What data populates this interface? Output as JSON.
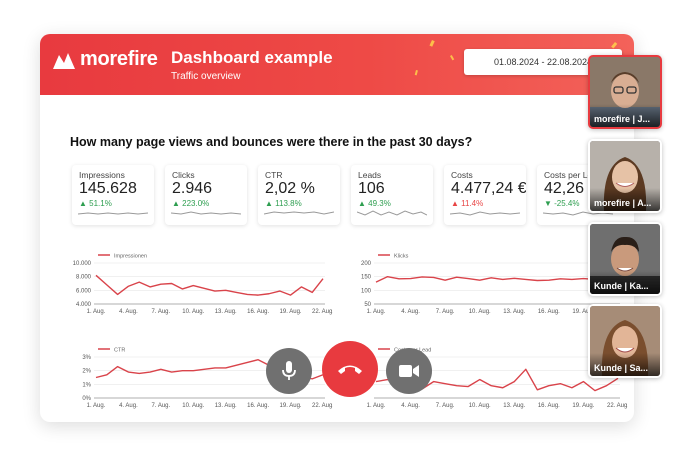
{
  "header": {
    "brand": "morefire",
    "title": "Dashboard example",
    "subtitle": "Traffic overview",
    "date_range": "01.08.2024 - 22.08.2024"
  },
  "question": "How many page views and bounces were there in the past 30 days?",
  "kpis": [
    {
      "label": "Impressions",
      "value": "145.628",
      "delta": "▲ 51.1%",
      "trend": "up"
    },
    {
      "label": "Clicks",
      "value": "2.946",
      "delta": "▲ 223.0%",
      "trend": "up"
    },
    {
      "label": "CTR",
      "value": "2,02 %",
      "delta": "▲ 113.8%",
      "trend": "up"
    },
    {
      "label": "Leads",
      "value": "106",
      "delta": "▲ 49.3%",
      "trend": "up"
    },
    {
      "label": "Costs",
      "value": "4.477,24 €",
      "delta": "▲ 11.4%",
      "trend": "down"
    },
    {
      "label": "Costs per Le",
      "value": "42,26",
      "delta": "▼ -25.4%",
      "trend": "up"
    }
  ],
  "colors": {
    "brand": "#e83a3f",
    "line": "#d9434a",
    "positive": "#2e9e50",
    "negative": "#e84545",
    "hangup": "#e83a3f",
    "control": "#6e6e6e"
  },
  "call_controls": [
    {
      "name": "microphone-button",
      "icon": "microphone-icon"
    },
    {
      "name": "hang-up-button",
      "icon": "phone-hangup-icon"
    },
    {
      "name": "camera-button",
      "icon": "video-camera-icon"
    }
  ],
  "participants": [
    {
      "name": "morefire | J...",
      "active": true
    },
    {
      "name": "morefire | A...",
      "active": false
    },
    {
      "name": "Kunde | Ka...",
      "active": false
    },
    {
      "name": "Kunde | Sa...",
      "active": false
    }
  ],
  "chart_data": [
    {
      "type": "line",
      "legend": "Impressionen",
      "x_ticks": [
        "1. Aug.",
        "4. Aug.",
        "7. Aug.",
        "10. Aug.",
        "13. Aug.",
        "16. Aug.",
        "19. Aug.",
        "22. Aug."
      ],
      "y_ticks": [
        "10.000",
        "8.000",
        "6.000",
        "4.000"
      ],
      "ylim": [
        4000,
        10000
      ],
      "x": [
        1,
        2,
        3,
        4,
        5,
        6,
        7,
        8,
        9,
        10,
        11,
        12,
        13,
        14,
        15,
        16,
        17,
        18,
        19,
        20,
        21,
        22
      ],
      "values": [
        8200,
        6800,
        5400,
        6600,
        7200,
        6500,
        6900,
        7000,
        6200,
        6700,
        6300,
        5900,
        6000,
        5700,
        5400,
        5300,
        5500,
        5900,
        5300,
        6500,
        5700,
        7700
      ]
    },
    {
      "type": "line",
      "legend": "Klicks",
      "x_ticks": [
        "1. Aug.",
        "4. Aug.",
        "7. Aug.",
        "10. Aug.",
        "13. Aug.",
        "16. Aug.",
        "19. Aug.",
        "22. Aug."
      ],
      "y_ticks": [
        "200",
        "150",
        "100",
        "50"
      ],
      "ylim": [
        50,
        200
      ],
      "x": [
        1,
        2,
        3,
        4,
        5,
        6,
        7,
        8,
        9,
        10,
        11,
        12,
        13,
        14,
        15,
        16,
        17,
        18,
        19,
        20,
        21,
        22
      ],
      "values": [
        130,
        150,
        142,
        143,
        149,
        147,
        137,
        148,
        143,
        137,
        146,
        140,
        144,
        140,
        136,
        137,
        142,
        140,
        143,
        140,
        138,
        146
      ]
    },
    {
      "type": "line",
      "legend": "CTR",
      "x_ticks": [
        "1. Aug.",
        "4. Aug.",
        "7. Aug.",
        "10. Aug.",
        "13. Aug.",
        "16. Aug.",
        "19. Aug.",
        "22. Aug."
      ],
      "y_ticks": [
        "3%",
        "2%",
        "1%",
        "0%"
      ],
      "ylim": [
        0,
        3
      ],
      "x": [
        1,
        2,
        3,
        4,
        5,
        6,
        7,
        8,
        9,
        10,
        11,
        12,
        13,
        14,
        15,
        16,
        17,
        18,
        19,
        20,
        21,
        22
      ],
      "values": [
        1.5,
        1.7,
        2.3,
        1.9,
        1.8,
        1.9,
        2.1,
        1.9,
        2.0,
        2.0,
        2.1,
        2.2,
        2.2,
        2.4,
        2.6,
        2.8,
        2.4,
        2.1,
        2.0,
        1.6,
        1.4,
        1.7
      ]
    },
    {
      "type": "line",
      "legend": "Costs per Lead",
      "x_ticks": [
        "1. Aug.",
        "4. Aug.",
        "7. Aug.",
        "10. Aug.",
        "13. Aug.",
        "16. Aug.",
        "19. Aug.",
        "22. Aug."
      ],
      "y_ticks": [
        "",
        "",
        "",
        ""
      ],
      "ylim": [
        0,
        100
      ],
      "x": [
        1,
        2,
        3,
        4,
        5,
        6,
        7,
        8,
        9,
        10,
        11,
        12,
        13,
        14,
        15,
        16,
        17,
        18,
        19,
        20,
        21,
        22
      ],
      "values": [
        40,
        45,
        38,
        30,
        22,
        40,
        35,
        30,
        28,
        45,
        30,
        25,
        40,
        70,
        20,
        30,
        35,
        25,
        40,
        18,
        30,
        48
      ]
    }
  ]
}
